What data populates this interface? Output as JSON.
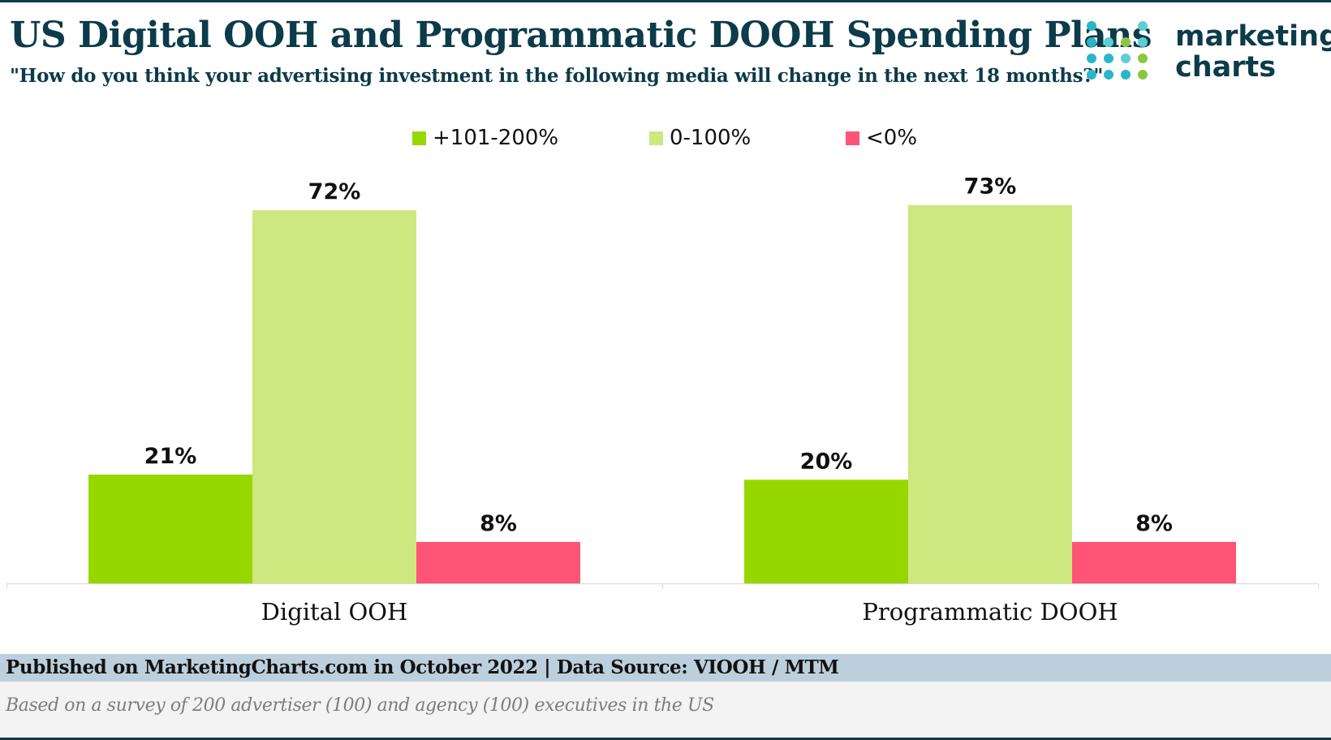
{
  "header": {
    "title": "US Digital OOH and Programmatic DOOH Spending Plans",
    "subtitle": "\"How do you think your advertising investment in the following media will change in the next 18 months?\""
  },
  "logo": {
    "line1": "marketing",
    "line2": "charts",
    "colors": [
      "#5ccfd6",
      "#2bb5c8",
      "#8cc63f"
    ]
  },
  "chart_data": {
    "type": "bar",
    "categories": [
      "Digital OOH",
      "Programmatic DOOH"
    ],
    "series": [
      {
        "name": "+101-200%",
        "color": "#97d700",
        "values": [
          21,
          20
        ]
      },
      {
        "name": "0-100%",
        "color": "#cde87f",
        "values": [
          72,
          73
        ]
      },
      {
        "name": "<0%",
        "color": "#ff5476",
        "values": [
          8,
          8
        ]
      }
    ],
    "value_suffix": "%",
    "ylim": [
      0,
      80
    ],
    "grid": false,
    "legend_position": "top-center"
  },
  "footer": {
    "source": "Published on MarketingCharts.com in October 2022 | Data Source: VIOOH / MTM",
    "note": "Based on a survey of 200 advertiser (100) and agency (100) executives in the US"
  }
}
